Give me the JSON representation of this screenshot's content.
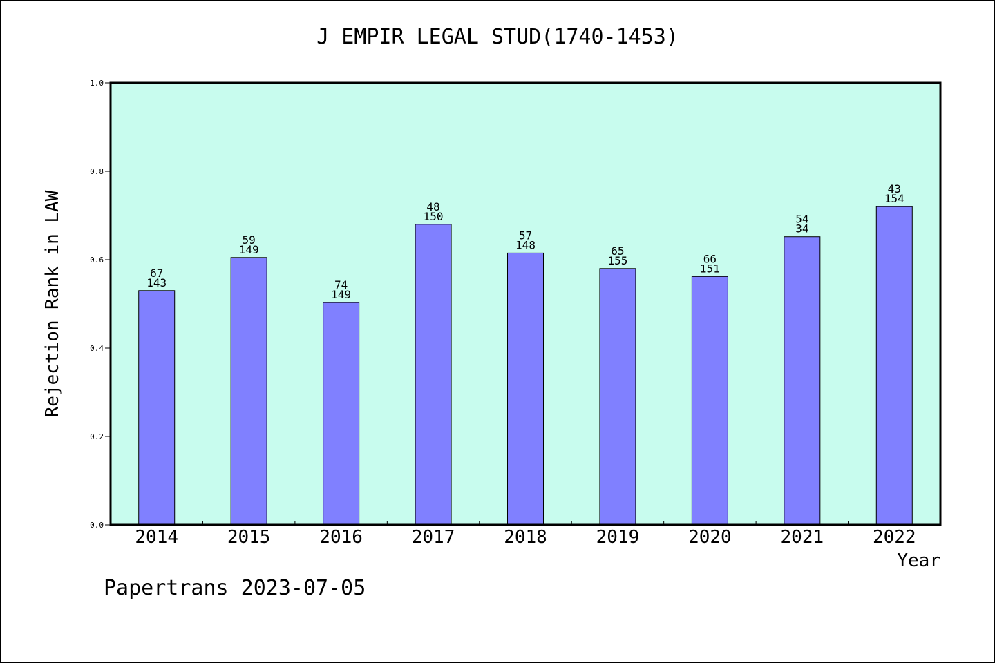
{
  "chart_data": {
    "type": "bar",
    "title": "J EMPIR LEGAL STUD(1740-1453)",
    "xlabel": "Year",
    "ylabel": "Rejection Rank in LAW",
    "ylim": [
      0,
      1.0
    ],
    "yticks": [
      "0.0",
      "0.2",
      "0.4",
      "0.6",
      "0.8",
      "1.0"
    ],
    "grid": false,
    "categories": [
      "2014",
      "2015",
      "2016",
      "2017",
      "2018",
      "2019",
      "2020",
      "2021",
      "2022"
    ],
    "values": [
      0.53,
      0.605,
      0.503,
      0.68,
      0.615,
      0.58,
      0.562,
      0.652,
      0.72
    ],
    "bar_labels_top": [
      "67",
      "59",
      "74",
      "48",
      "57",
      "65",
      "66",
      "54",
      "43"
    ],
    "bar_labels_bottom": [
      "143",
      "149",
      "149",
      "150",
      "148",
      "155",
      "151",
      "34",
      "154"
    ],
    "colors": {
      "plot_background": "#c8fcee",
      "bar_fill": "#8080ff",
      "bar_stroke": "#000000"
    }
  },
  "footer": {
    "text": "Papertrans 2023-07-05"
  }
}
